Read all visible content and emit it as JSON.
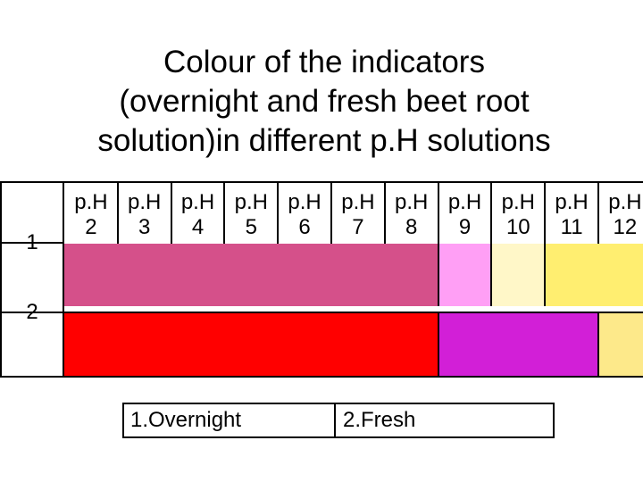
{
  "title": {
    "line1": "Colour of the indicators",
    "line2": "(overnight and fresh beet root",
    "line3": "solution)in different p.H solutions"
  },
  "ph_columns": [
    {
      "label": "p.H",
      "value": "2"
    },
    {
      "label": "p.H",
      "value": "3"
    },
    {
      "label": "p.H",
      "value": "4"
    },
    {
      "label": "p.H",
      "value": "5"
    },
    {
      "label": "p.H",
      "value": "6"
    },
    {
      "label": "p.H",
      "value": "7"
    },
    {
      "label": "p.H",
      "value": "8"
    },
    {
      "label": "p.H",
      "value": "9"
    },
    {
      "label": "p.H",
      "value": "10"
    },
    {
      "label": "p.H",
      "value": "11"
    },
    {
      "label": "p.H",
      "value": "12"
    }
  ],
  "rows": [
    {
      "label": "1",
      "segments": [
        {
          "ph_from": "2",
          "ph_to": "8",
          "color": "#d5508a"
        },
        {
          "ph_from": "9",
          "ph_to": "9",
          "color": "#ff9ff5"
        },
        {
          "ph_from": "10",
          "ph_to": "10",
          "color": "#fff7c8"
        },
        {
          "ph_from": "11",
          "ph_to": "12",
          "color": "#ffee70"
        }
      ]
    },
    {
      "label": "2",
      "segments": [
        {
          "ph_from": "2",
          "ph_to": "8",
          "color": "#ff0000"
        },
        {
          "ph_from": "9",
          "ph_to": "11",
          "color": "#d21fd7"
        },
        {
          "ph_from": "12",
          "ph_to": "12",
          "color": "#fde98a"
        }
      ]
    }
  ],
  "legend": {
    "item1": "1.Overnight",
    "item2": "2.Fresh"
  }
}
